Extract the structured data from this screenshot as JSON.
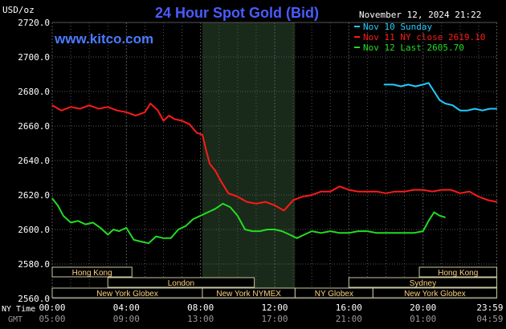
{
  "chart_data": {
    "type": "line",
    "title": "24 Hour Spot Gold (Bid)",
    "watermark": "www.kitco.com",
    "timestamp": "November 12, 2024 21:22",
    "unit_label": "USD/oz",
    "y_ticks": [
      "2720.0",
      "2700.0",
      "2680.0",
      "2660.0",
      "2640.0",
      "2620.0",
      "2600.0",
      "2580.0",
      "2560.0"
    ],
    "ylim": [
      2560,
      2720
    ],
    "xlim_hours": [
      0,
      24
    ],
    "x_ticks": [
      {
        "ny": "00:00",
        "gmt": "05:00"
      },
      {
        "ny": "04:00",
        "gmt": "09:00"
      },
      {
        "ny": "08:00",
        "gmt": "13:00"
      },
      {
        "ny": "12:00",
        "gmt": "17:00"
      },
      {
        "ny": "16:00",
        "gmt": "21:00"
      },
      {
        "ny": "20:00",
        "gmt": "01:00"
      },
      {
        "ny": "23:59",
        "gmt": "04:59"
      }
    ],
    "x_axis_labels": {
      "ny": "NY Time",
      "gmt": "GMT"
    },
    "grid": true,
    "legend_position": "top-right",
    "highlight_region_hours": [
      8.1,
      13.1
    ],
    "colors": {
      "background": "#000000",
      "grid": "#555555",
      "title": "#4a5cff",
      "watermark": "#4a7cff",
      "axis_text": "#ffffff",
      "highlight": "#1a2a1a",
      "session_fill": "#000000",
      "session_stroke": "#c8c8a0",
      "session_text": "#ffd080"
    },
    "series": [
      {
        "name": "Nov 10 Sunday",
        "color": "#22ccff",
        "x": [
          17.9,
          18.4,
          18.8,
          19.2,
          19.6,
          20.0,
          20.3,
          20.6,
          20.9,
          21.2,
          21.6,
          22.0,
          22.4,
          22.8,
          23.2,
          23.6,
          23.98
        ],
        "y": [
          2684,
          2684,
          2683,
          2684,
          2683,
          2684,
          2685,
          2680,
          2675,
          2673,
          2672,
          2669,
          2669,
          2670,
          2669,
          2670,
          2670
        ]
      },
      {
        "name": "Nov 11 NY close 2619.10",
        "color": "#ff1a1a",
        "x": [
          0.0,
          0.5,
          1.0,
          1.5,
          2.0,
          2.5,
          3.0,
          3.5,
          4.0,
          4.5,
          5.0,
          5.3,
          5.7,
          6.0,
          6.3,
          6.6,
          7.0,
          7.4,
          7.8,
          8.1,
          8.3,
          8.5,
          8.8,
          9.1,
          9.5,
          10.0,
          10.5,
          11.0,
          11.5,
          12.0,
          12.5,
          13.0,
          13.5,
          14.0,
          14.5,
          15.0,
          15.5,
          16.0,
          16.5,
          17.0,
          17.5,
          18.0,
          18.5,
          19.0,
          19.5,
          20.0,
          20.5,
          21.0,
          21.5,
          22.0,
          22.5,
          23.0,
          23.5,
          23.98
        ],
        "y": [
          2672,
          2669,
          2671,
          2670,
          2672,
          2670,
          2671,
          2669,
          2668,
          2666,
          2668,
          2673,
          2669,
          2663,
          2666,
          2664,
          2663,
          2661,
          2656,
          2655,
          2646,
          2638,
          2634,
          2628,
          2621,
          2619,
          2616,
          2615,
          2616,
          2614,
          2611,
          2617,
          2619,
          2620,
          2622,
          2622,
          2625,
          2623,
          2622,
          2622,
          2622,
          2621,
          2622,
          2622,
          2623,
          2623,
          2622,
          2623,
          2623,
          2621,
          2622,
          2619,
          2617,
          2616
        ]
      },
      {
        "name": "Nov 12 Last 2605.70",
        "color": "#22dd22",
        "x": [
          0.0,
          0.3,
          0.6,
          1.0,
          1.4,
          1.8,
          2.2,
          2.6,
          3.0,
          3.3,
          3.6,
          4.0,
          4.4,
          4.8,
          5.2,
          5.6,
          6.0,
          6.4,
          6.8,
          7.2,
          7.6,
          8.0,
          8.4,
          8.8,
          9.2,
          9.6,
          10.0,
          10.4,
          10.8,
          11.2,
          11.6,
          12.0,
          12.4,
          12.8,
          13.2,
          13.6,
          14.0,
          14.5,
          15.0,
          15.5,
          16.0,
          16.5,
          17.0,
          17.5,
          18.0,
          18.5,
          19.0,
          19.5,
          20.0,
          20.3,
          20.6,
          20.9,
          21.2
        ],
        "y": [
          2618,
          2614,
          2608,
          2604,
          2605,
          2603,
          2604,
          2601,
          2597,
          2600,
          2599,
          2601,
          2594,
          2593,
          2592,
          2596,
          2595,
          2595,
          2600,
          2602,
          2606,
          2608,
          2610,
          2612,
          2615,
          2613,
          2608,
          2600,
          2599,
          2599,
          2600,
          2600,
          2599,
          2597,
          2595,
          2597,
          2599,
          2598,
          2599,
          2598,
          2598,
          2599,
          2599,
          2598,
          2598,
          2598,
          2598,
          2598,
          2599,
          2605,
          2610,
          2608,
          2607
        ]
      }
    ],
    "sessions": [
      {
        "label": "Hong Kong",
        "start": 0.0,
        "end": 4.3,
        "row": 0
      },
      {
        "label": "Hong Kong",
        "start": 19.8,
        "end": 23.98,
        "row": 0
      },
      {
        "label": "London",
        "start": 3.0,
        "end": 10.9,
        "row": 1
      },
      {
        "label": "Sydney",
        "start": 16.0,
        "end": 23.98,
        "row": 1
      },
      {
        "label": "New York Globex",
        "start": 0.0,
        "end": 8.1,
        "row": 2
      },
      {
        "label": "New York NYMEX",
        "start": 8.1,
        "end": 13.1,
        "row": 2
      },
      {
        "label": "NY Globex",
        "start": 13.1,
        "end": 17.3,
        "row": 2
      },
      {
        "label": "New York Globex",
        "start": 17.3,
        "end": 23.98,
        "row": 2
      }
    ]
  }
}
